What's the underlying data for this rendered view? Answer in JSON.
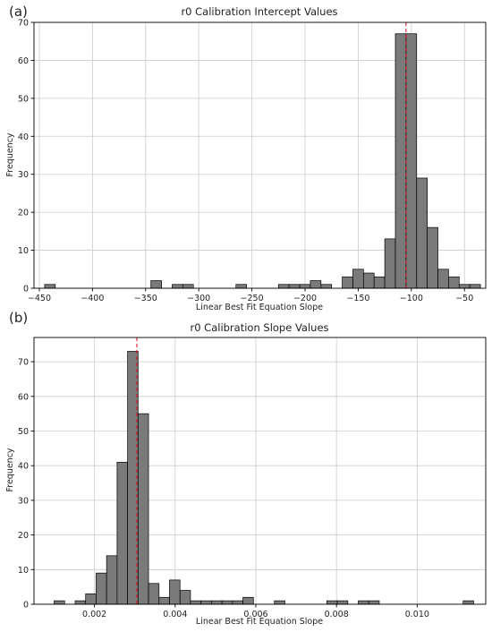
{
  "chart_data": [
    {
      "type": "bar",
      "panel_label": "(a)",
      "title": "r0 Calibration Intercept Values",
      "xlabel": "Linear Best Fit Equation Slope",
      "ylabel": "Frequency",
      "xlim": [
        -455,
        -30
      ],
      "ylim": [
        0,
        70
      ],
      "grid": true,
      "xticks": [
        -450,
        -400,
        -350,
        -300,
        -250,
        -200,
        -150,
        -100,
        -50
      ],
      "yticks": [
        0,
        10,
        20,
        30,
        40,
        50,
        60,
        70
      ],
      "mean_line_x": -105,
      "bin_width": 10,
      "bins": [
        {
          "x": -440,
          "count": 1
        },
        {
          "x": -340,
          "count": 2
        },
        {
          "x": -320,
          "count": 1
        },
        {
          "x": -310,
          "count": 1
        },
        {
          "x": -260,
          "count": 1
        },
        {
          "x": -220,
          "count": 1
        },
        {
          "x": -210,
          "count": 1
        },
        {
          "x": -200,
          "count": 1
        },
        {
          "x": -190,
          "count": 2
        },
        {
          "x": -180,
          "count": 1
        },
        {
          "x": -160,
          "count": 3
        },
        {
          "x": -150,
          "count": 5
        },
        {
          "x": -140,
          "count": 4
        },
        {
          "x": -130,
          "count": 3
        },
        {
          "x": -120,
          "count": 13
        },
        {
          "x": -110,
          "count": 67
        },
        {
          "x": -100,
          "count": 67
        },
        {
          "x": -90,
          "count": 29
        },
        {
          "x": -80,
          "count": 16
        },
        {
          "x": -70,
          "count": 5
        },
        {
          "x": -60,
          "count": 3
        },
        {
          "x": -50,
          "count": 1
        },
        {
          "x": -40,
          "count": 1
        }
      ]
    },
    {
      "type": "bar",
      "panel_label": "(b)",
      "title": "r0 Calibration Slope Values",
      "xlabel": "Linear Best Fit Equation Slope",
      "ylabel": "Frequency",
      "xlim": [
        0.0005,
        0.0117
      ],
      "ylim": [
        0,
        77
      ],
      "grid": true,
      "xticks": [
        0.002,
        0.004,
        0.006,
        0.008,
        0.01
      ],
      "xtick_labels": [
        "0.002",
        "0.004",
        "0.006",
        "0.008",
        "0.010"
      ],
      "yticks": [
        0,
        10,
        20,
        30,
        40,
        50,
        60,
        70
      ],
      "mean_line_x": 0.00305,
      "bin_width": 0.00026,
      "bins": [
        {
          "x": 0.00113,
          "count": 1
        },
        {
          "x": 0.00165,
          "count": 1
        },
        {
          "x": 0.00191,
          "count": 3
        },
        {
          "x": 0.00217,
          "count": 9
        },
        {
          "x": 0.00243,
          "count": 14
        },
        {
          "x": 0.00269,
          "count": 41
        },
        {
          "x": 0.00295,
          "count": 73
        },
        {
          "x": 0.00321,
          "count": 55
        },
        {
          "x": 0.00347,
          "count": 6
        },
        {
          "x": 0.00373,
          "count": 2
        },
        {
          "x": 0.00399,
          "count": 7
        },
        {
          "x": 0.00425,
          "count": 4
        },
        {
          "x": 0.00451,
          "count": 1
        },
        {
          "x": 0.00477,
          "count": 1
        },
        {
          "x": 0.00503,
          "count": 1
        },
        {
          "x": 0.00529,
          "count": 1
        },
        {
          "x": 0.00555,
          "count": 1
        },
        {
          "x": 0.00581,
          "count": 2
        },
        {
          "x": 0.00659,
          "count": 1
        },
        {
          "x": 0.00789,
          "count": 1
        },
        {
          "x": 0.00815,
          "count": 1
        },
        {
          "x": 0.00867,
          "count": 1
        },
        {
          "x": 0.00893,
          "count": 1
        },
        {
          "x": 0.01127,
          "count": 1
        }
      ]
    }
  ]
}
